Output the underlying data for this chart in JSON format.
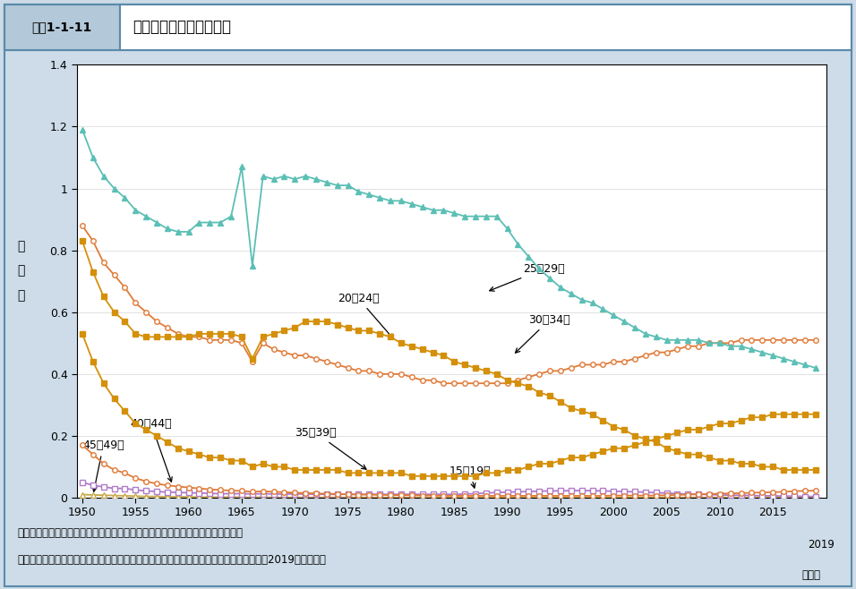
{
  "header_label": "図表1-1-11",
  "header_title": "母の年齢別出生率の推移",
  "ylabel": "出\n生\n率",
  "source_text": "資料：厚生労働省政策統括官付参事官付人口動態・保健統計室「人口動態統計」",
  "note_text": "（注）　母の各歳別出生率を足し上げたもので、各階級の合計が合計特殊出生率である。2019年は概数。",
  "background_outer": "#cddce8",
  "background_inner": "#ffffff",
  "yticks": [
    0,
    0.2,
    0.4,
    0.6,
    0.8,
    1.0,
    1.2,
    1.4
  ],
  "years": [
    1950,
    1951,
    1952,
    1953,
    1954,
    1955,
    1956,
    1957,
    1958,
    1959,
    1960,
    1961,
    1962,
    1963,
    1964,
    1965,
    1966,
    1967,
    1968,
    1969,
    1970,
    1971,
    1972,
    1973,
    1974,
    1975,
    1976,
    1977,
    1978,
    1979,
    1980,
    1981,
    1982,
    1983,
    1984,
    1985,
    1986,
    1987,
    1988,
    1989,
    1990,
    1991,
    1992,
    1993,
    1994,
    1995,
    1996,
    1997,
    1998,
    1999,
    2000,
    2001,
    2002,
    2003,
    2004,
    2005,
    2006,
    2007,
    2008,
    2009,
    2010,
    2011,
    2012,
    2013,
    2014,
    2015,
    2016,
    2017,
    2018,
    2019
  ],
  "vals_25_29": [
    1.19,
    1.1,
    1.04,
    1.0,
    0.97,
    0.93,
    0.91,
    0.89,
    0.87,
    0.86,
    0.86,
    0.89,
    0.89,
    0.89,
    0.91,
    1.07,
    0.75,
    1.04,
    1.03,
    1.04,
    1.03,
    1.04,
    1.03,
    1.02,
    1.01,
    1.01,
    0.99,
    0.98,
    0.97,
    0.96,
    0.96,
    0.95,
    0.94,
    0.93,
    0.93,
    0.92,
    0.91,
    0.91,
    0.91,
    0.91,
    0.87,
    0.82,
    0.78,
    0.74,
    0.71,
    0.68,
    0.66,
    0.64,
    0.63,
    0.61,
    0.59,
    0.57,
    0.55,
    0.53,
    0.52,
    0.51,
    0.51,
    0.51,
    0.51,
    0.5,
    0.5,
    0.49,
    0.49,
    0.48,
    0.47,
    0.46,
    0.45,
    0.44,
    0.43,
    0.42
  ],
  "vals_30_34": [
    0.88,
    0.83,
    0.76,
    0.72,
    0.68,
    0.63,
    0.6,
    0.57,
    0.55,
    0.53,
    0.52,
    0.52,
    0.51,
    0.51,
    0.51,
    0.5,
    0.44,
    0.5,
    0.48,
    0.47,
    0.46,
    0.46,
    0.45,
    0.44,
    0.43,
    0.42,
    0.41,
    0.41,
    0.4,
    0.4,
    0.4,
    0.39,
    0.38,
    0.38,
    0.37,
    0.37,
    0.37,
    0.37,
    0.37,
    0.37,
    0.37,
    0.38,
    0.39,
    0.4,
    0.41,
    0.41,
    0.42,
    0.43,
    0.43,
    0.43,
    0.44,
    0.44,
    0.45,
    0.46,
    0.47,
    0.47,
    0.48,
    0.49,
    0.49,
    0.5,
    0.5,
    0.5,
    0.51,
    0.51,
    0.51,
    0.51,
    0.51,
    0.51,
    0.51,
    0.51
  ],
  "vals_20_24": [
    0.83,
    0.73,
    0.65,
    0.6,
    0.57,
    0.53,
    0.52,
    0.52,
    0.52,
    0.52,
    0.52,
    0.53,
    0.53,
    0.53,
    0.53,
    0.52,
    0.45,
    0.52,
    0.53,
    0.54,
    0.55,
    0.57,
    0.57,
    0.57,
    0.56,
    0.55,
    0.54,
    0.54,
    0.53,
    0.52,
    0.5,
    0.49,
    0.48,
    0.47,
    0.46,
    0.44,
    0.43,
    0.42,
    0.41,
    0.4,
    0.38,
    0.37,
    0.36,
    0.34,
    0.33,
    0.31,
    0.29,
    0.28,
    0.27,
    0.25,
    0.23,
    0.22,
    0.2,
    0.19,
    0.18,
    0.16,
    0.15,
    0.14,
    0.14,
    0.13,
    0.12,
    0.12,
    0.11,
    0.11,
    0.1,
    0.1,
    0.09,
    0.09,
    0.09,
    0.09
  ],
  "vals_35_39": [
    0.53,
    0.44,
    0.37,
    0.32,
    0.28,
    0.24,
    0.22,
    0.2,
    0.18,
    0.16,
    0.15,
    0.14,
    0.13,
    0.13,
    0.12,
    0.12,
    0.1,
    0.11,
    0.1,
    0.1,
    0.09,
    0.09,
    0.09,
    0.09,
    0.09,
    0.08,
    0.08,
    0.08,
    0.08,
    0.08,
    0.08,
    0.07,
    0.07,
    0.07,
    0.07,
    0.07,
    0.07,
    0.07,
    0.08,
    0.08,
    0.09,
    0.09,
    0.1,
    0.11,
    0.11,
    0.12,
    0.13,
    0.13,
    0.14,
    0.15,
    0.16,
    0.16,
    0.17,
    0.18,
    0.19,
    0.2,
    0.21,
    0.22,
    0.22,
    0.23,
    0.24,
    0.24,
    0.25,
    0.26,
    0.26,
    0.27,
    0.27,
    0.27,
    0.27,
    0.27
  ],
  "vals_15_19": [
    0.05,
    0.04,
    0.035,
    0.03,
    0.03,
    0.025,
    0.022,
    0.02,
    0.018,
    0.017,
    0.016,
    0.015,
    0.014,
    0.013,
    0.013,
    0.013,
    0.012,
    0.013,
    0.012,
    0.012,
    0.012,
    0.012,
    0.011,
    0.011,
    0.011,
    0.011,
    0.011,
    0.011,
    0.011,
    0.011,
    0.011,
    0.011,
    0.011,
    0.011,
    0.011,
    0.011,
    0.012,
    0.013,
    0.015,
    0.017,
    0.018,
    0.019,
    0.02,
    0.021,
    0.022,
    0.022,
    0.023,
    0.023,
    0.023,
    0.022,
    0.021,
    0.02,
    0.019,
    0.018,
    0.016,
    0.015,
    0.013,
    0.012,
    0.011,
    0.01,
    0.009,
    0.008,
    0.008,
    0.007,
    0.006,
    0.006,
    0.005,
    0.005,
    0.004,
    0.004
  ],
  "vals_40_44": [
    0.17,
    0.14,
    0.11,
    0.09,
    0.08,
    0.063,
    0.053,
    0.045,
    0.04,
    0.036,
    0.033,
    0.03,
    0.027,
    0.025,
    0.023,
    0.022,
    0.019,
    0.021,
    0.019,
    0.018,
    0.016,
    0.015,
    0.014,
    0.013,
    0.012,
    0.011,
    0.01,
    0.01,
    0.009,
    0.009,
    0.008,
    0.008,
    0.007,
    0.007,
    0.006,
    0.006,
    0.006,
    0.006,
    0.006,
    0.006,
    0.006,
    0.006,
    0.006,
    0.006,
    0.006,
    0.006,
    0.006,
    0.006,
    0.006,
    0.006,
    0.007,
    0.007,
    0.007,
    0.007,
    0.007,
    0.008,
    0.009,
    0.01,
    0.011,
    0.012,
    0.013,
    0.014,
    0.015,
    0.016,
    0.017,
    0.018,
    0.019,
    0.021,
    0.022,
    0.023
  ],
  "vals_45_49": [
    0.01,
    0.009,
    0.008,
    0.007,
    0.006,
    0.005,
    0.004,
    0.004,
    0.003,
    0.003,
    0.003,
    0.002,
    0.002,
    0.002,
    0.002,
    0.002,
    0.001,
    0.002,
    0.001,
    0.001,
    0.001,
    0.001,
    0.001,
    0.001,
    0.001,
    0.001,
    0.001,
    0.001,
    0.001,
    0.001,
    0.001,
    0.001,
    0.001,
    0.001,
    0.001,
    0.001,
    0.001,
    0.001,
    0.001,
    0.001,
    0.001,
    0.001,
    0.001,
    0.001,
    0.001,
    0.001,
    0.001,
    0.001,
    0.001,
    0.001,
    0.001,
    0.001,
    0.001,
    0.001,
    0.001,
    0.001,
    0.001,
    0.001,
    0.001,
    0.001,
    0.001,
    0.001,
    0.001,
    0.001,
    0.001,
    0.001,
    0.001,
    0.001,
    0.001,
    0.001
  ],
  "color_25_29": "#5bbfb5",
  "color_30_34": "#e07b39",
  "color_20_24": "#d4900a",
  "color_35_39": "#d4900a",
  "color_15_19": "#b07bc8",
  "color_40_44": "#e07b39",
  "color_45_49": "#c8a84b"
}
